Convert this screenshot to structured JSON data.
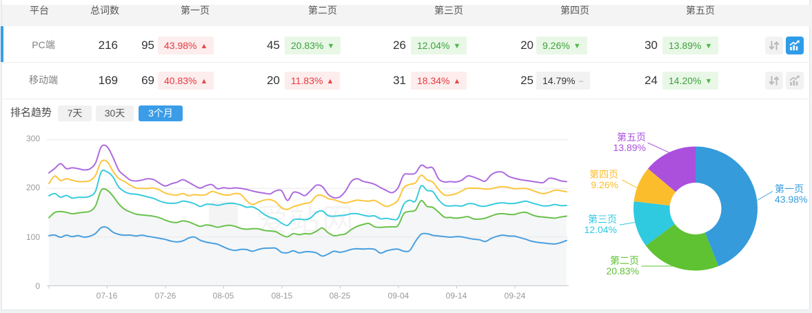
{
  "colors": {
    "accent": "#3b9de8",
    "panel_border": "#e3e6e8",
    "page_bg": "#f0f2f3",
    "header_bg": "#f4f4f4",
    "up_red": "#e5393f",
    "up_red_bg": "#fdeded",
    "down_green": "#3ca23c",
    "down_green_bg": "#e9f7e7",
    "flat_gray_bg": "#f2f2f2"
  },
  "table": {
    "columns": [
      "平台",
      "总词数",
      "第一页",
      "第二页",
      "第三页",
      "第四页",
      "第五页"
    ],
    "rows": [
      {
        "platform": "PC端",
        "selected": true,
        "total": "216",
        "pages": [
          {
            "count": "95",
            "pct": "43.98%",
            "dir": "up",
            "tone": "red"
          },
          {
            "count": "45",
            "pct": "20.83%",
            "dir": "down",
            "tone": "green"
          },
          {
            "count": "26",
            "pct": "12.04%",
            "dir": "down",
            "tone": "green"
          },
          {
            "count": "20",
            "pct": "9.26%",
            "dir": "down",
            "tone": "green"
          },
          {
            "count": "30",
            "pct": "13.89%",
            "dir": "down",
            "tone": "green"
          }
        ],
        "actions": {
          "sort_active": false,
          "chart_active": true
        }
      },
      {
        "platform": "移动端",
        "selected": false,
        "total": "169",
        "pages": [
          {
            "count": "69",
            "pct": "40.83%",
            "dir": "up",
            "tone": "red"
          },
          {
            "count": "20",
            "pct": "11.83%",
            "dir": "up",
            "tone": "red"
          },
          {
            "count": "31",
            "pct": "18.34%",
            "dir": "up",
            "tone": "red"
          },
          {
            "count": "25",
            "pct": "14.79%",
            "dir": "flat",
            "tone": "gray"
          },
          {
            "count": "24",
            "pct": "14.20%",
            "dir": "down",
            "tone": "green"
          }
        ],
        "actions": {
          "sort_active": false,
          "chart_active": false
        }
      }
    ]
  },
  "trend": {
    "label": "排名趋势",
    "tabs": [
      {
        "label": "7天",
        "active": false
      },
      {
        "label": "30天",
        "active": false
      },
      {
        "label": "3个月",
        "active": true
      }
    ]
  },
  "icons": {
    "sort": "updown-arrows-icon",
    "trend": "trend-chart-icon",
    "rise": "arrow-up-icon",
    "fall": "arrow-down-icon",
    "flat": "minus-icon"
  },
  "watermark": "爱站网",
  "chart_data": [
    {
      "type": "line",
      "title": "排名趋势 3个月",
      "x_tick_labels": [
        "07-16",
        "07-26",
        "08-05",
        "08-15",
        "08-25",
        "09-04",
        "09-14",
        "09-24"
      ],
      "y_ticks": [
        "0",
        "100",
        "200",
        "300"
      ],
      "ylim": [
        0,
        300
      ],
      "grid": true,
      "legend": false,
      "series": [
        {
          "name": "第一页",
          "color": "#489fe0",
          "values": [
            103,
            104.1,
            99.7,
            104.0,
            101.0,
            103.0,
            100.0,
            101.7,
            107.4,
            119.5,
            119.5,
            110.2,
            105.5,
            103.9,
            104.1,
            102.2,
            103.9,
            101.6,
            99.7,
            97.6,
            95.2,
            91.8,
            90.1,
            92.0,
            98.0,
            100.2,
            93.6,
            89.8,
            87.6,
            85.3,
            79.9,
            75.0,
            72.5,
            74.8,
            74.3,
            71.0,
            74.6,
            77.1,
            77.4,
            77.0,
            68.7,
            67.7,
            71.9,
            67.6,
            69.8,
            69.7,
            67.5,
            61.0,
            65.2,
            71.0,
            68.8,
            71.1,
            74.8,
            76.0,
            75.4,
            76.0,
            74.8,
            67.2,
            71.6,
            74.3,
            75.2,
            71.1,
            72.2,
            90.8,
            106.0,
            107.0,
            103.6,
            102.3,
            100.9,
            99.9,
            101.0,
            100.4,
            97.9,
            95.8,
            94.6,
            91.0,
            97.0,
            101.6,
            104.0,
            102.3,
            102.0,
            98.8,
            95.4,
            91.5,
            89.3,
            88.0,
            86.5,
            85.9,
            88.7,
            93
          ]
        },
        {
          "name": "第二页",
          "color": "#68c24a",
          "area": "#f5f6f7",
          "values": [
            140,
            150.6,
            152.5,
            150.8,
            148.0,
            149.6,
            151.2,
            153.0,
            163.9,
            196.5,
            196.5,
            184.5,
            168.1,
            157.2,
            151.6,
            147.2,
            145.5,
            144.4,
            142.8,
            139.8,
            134.9,
            131.0,
            130.0,
            133.3,
            131.3,
            126.5,
            122.1,
            124.9,
            123.4,
            120.2,
            122.7,
            124.2,
            122.1,
            117.8,
            116.2,
            117.1,
            117.0,
            113.9,
            112.6,
            111.0,
            104.5,
            100.5,
            107.1,
            105.1,
            107.1,
            106.7,
            112.2,
            118.7,
            108.9,
            102.9,
            104.6,
            106.8,
            115.7,
            122.1,
            125.9,
            128.0,
            121.2,
            120.1,
            120.9,
            121.2,
            123.7,
            147.9,
            152.9,
            155.3,
            175.0,
            163.1,
            161.0,
            151.2,
            141.0,
            140.3,
            138.9,
            140.2,
            141.9,
            137.4,
            136.9,
            138.8,
            143.2,
            147.1,
            148.1,
            146.7,
            146.5,
            149.8,
            150.8,
            146.0,
            142.5,
            141.2,
            140.0,
            139.0,
            141.3,
            143
          ]
        },
        {
          "name": "第三页",
          "color": "#38cbdd",
          "values": [
            185,
            189.4,
            182.0,
            185.6,
            180.1,
            181.7,
            181.7,
            183.7,
            194.2,
            234.0,
            234.0,
            223.5,
            202.7,
            193.3,
            189.1,
            188.1,
            185.6,
            182.5,
            179.6,
            174.2,
            170.7,
            169.4,
            170.1,
            173.9,
            172.2,
            168.6,
            163.1,
            167.3,
            167.3,
            165.3,
            167.7,
            169.4,
            168.8,
            165.8,
            161.4,
            162.1,
            156.1,
            146.8,
            140.5,
            136.9,
            128.8,
            124.0,
            135.1,
            137.0,
            135.9,
            139.5,
            150.8,
            153.7,
            144.0,
            143.1,
            144.0,
            145.2,
            148.1,
            148.0,
            145.2,
            142.9,
            143.6,
            137.5,
            138.7,
            136.6,
            138.4,
            167.4,
            175.6,
            174.1,
            205.1,
            195.9,
            193.5,
            176.5,
            165.6,
            163.9,
            164.8,
            163.7,
            168.3,
            168.3,
            164.1,
            163.4,
            166.4,
            169.3,
            170.6,
            169.0,
            169.2,
            171.5,
            173.9,
            170.3,
            167.1,
            164.1,
            164.5,
            167.0,
            164.6,
            165
          ]
        },
        {
          "name": "第四页",
          "color": "#fcc53c",
          "values": [
            210,
            225.5,
            216.1,
            219.8,
            216.8,
            214.0,
            214.1,
            215.9,
            226.6,
            255.0,
            255.0,
            235.5,
            220.6,
            214.2,
            206.4,
            200.7,
            200.0,
            199.9,
            200.8,
            196.8,
            190.5,
            187.4,
            186.3,
            189.4,
            185.1,
            187.2,
            186.1,
            187.2,
            193.8,
            190.7,
            187.1,
            186.4,
            189.6,
            187.5,
            174.5,
            167.0,
            171.9,
            176.1,
            177.0,
            171.9,
            160.0,
            157.0,
            162.4,
            165.9,
            169.1,
            171.8,
            184.9,
            185.4,
            179.1,
            176.7,
            172.8,
            170.2,
            173.3,
            176.0,
            174.5,
            173.9,
            175.4,
            168.8,
            163.1,
            166.9,
            175.6,
            201.3,
            208.2,
            211.4,
            227.0,
            217.5,
            213.2,
            197.4,
            186.5,
            186.6,
            189.2,
            195.1,
            200.2,
            200.6,
            200.0,
            198.6,
            199.3,
            202.2,
            203.7,
            202.1,
            199.5,
            199.8,
            199.8,
            196.4,
            192.1,
            189.3,
            192.1,
            196.4,
            195.3,
            193
          ]
        },
        {
          "name": "第五页",
          "color": "#ad6ade",
          "values": [
            232,
            241.1,
            250.9,
            240.6,
            242.3,
            240.6,
            238.1,
            240.0,
            252.0,
            285.5,
            285.5,
            264.2,
            237.5,
            226.2,
            217.3,
            215.3,
            217.2,
            219.9,
            218.1,
            210.8,
            205.0,
            209.4,
            212.8,
            218.0,
            212.6,
            205.9,
            200.8,
            205.7,
            207.8,
            199.3,
            201.5,
            199.9,
            201.1,
            200.1,
            197.9,
            194.7,
            192.1,
            190.4,
            188.7,
            195.1,
            195.3,
            175.3,
            191.6,
            190.6,
            185.3,
            195.5,
            206.6,
            203.7,
            188.0,
            180.9,
            182.6,
            194.8,
            214.5,
            219.8,
            214.5,
            212.0,
            208.3,
            201.8,
            195.8,
            191.2,
            200.9,
            227.6,
            229.4,
            231.4,
            247.6,
            242.2,
            242.1,
            219.5,
            213.3,
            214.0,
            213.2,
            217.1,
            225.6,
            223.4,
            218.7,
            215.0,
            227.6,
            233.6,
            233.3,
            225.1,
            221.0,
            218.2,
            216.4,
            214.6,
            212.8,
            212.1,
            220.8,
            219.6,
            215.5,
            214
          ]
        }
      ]
    },
    {
      "type": "pie",
      "donut": true,
      "slices": [
        {
          "label": "第一页",
          "value": 43.98,
          "pct_label": "43.98%",
          "color": "#359bdb"
        },
        {
          "label": "第二页",
          "value": 20.83,
          "pct_label": "20.83%",
          "color": "#5ec232"
        },
        {
          "label": "第三页",
          "value": 12.04,
          "pct_label": "12.04%",
          "color": "#2fc9e0"
        },
        {
          "label": "第四页",
          "value": 9.26,
          "pct_label": "9.26%",
          "color": "#fcbd2d"
        },
        {
          "label": "第五页",
          "value": 13.89,
          "pct_label": "13.89%",
          "color": "#aa50dd"
        }
      ]
    }
  ]
}
